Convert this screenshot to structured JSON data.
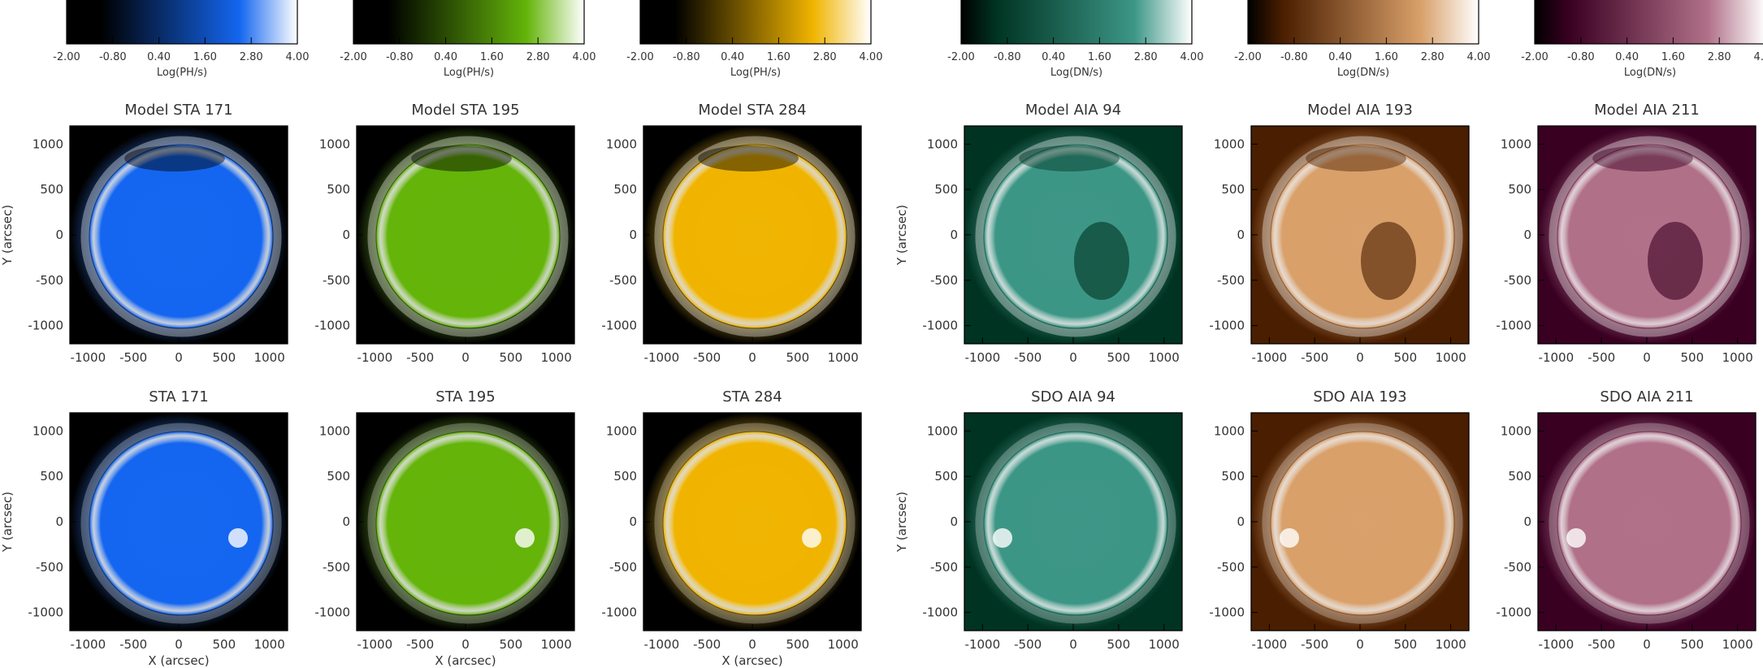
{
  "colorbars": [
    {
      "ticks": [
        "-2.00",
        "-0.80",
        "0.40",
        "1.60",
        "2.80",
        "4.00"
      ],
      "label": "Log(PH/s)",
      "cmap": "blue"
    },
    {
      "ticks": [
        "-2.00",
        "-0.80",
        "0.40",
        "1.60",
        "2.80",
        "4.00"
      ],
      "label": "Log(PH/s)",
      "cmap": "green"
    },
    {
      "ticks": [
        "-2.00",
        "-0.80",
        "0.40",
        "1.60",
        "2.80",
        "4.00"
      ],
      "label": "Log(PH/s)",
      "cmap": "gold"
    },
    {
      "ticks": [
        "-2.00",
        "-0.80",
        "0.40",
        "1.60",
        "2.80",
        "4.00"
      ],
      "label": "Log(DN/s)",
      "cmap": "teal"
    },
    {
      "ticks": [
        "-2.00",
        "-0.80",
        "0.40",
        "1.60",
        "2.80",
        "4.00"
      ],
      "label": "Log(DN/s)",
      "cmap": "brown"
    },
    {
      "ticks": [
        "-2.00",
        "-0.80",
        "0.40",
        "1.60",
        "2.80",
        "4.00"
      ],
      "label": "Log(DN/s)",
      "cmap": "mauve"
    }
  ],
  "axes": {
    "x_ticks": [
      "-1000",
      "-500",
      "0",
      "500",
      "1000"
    ],
    "y_ticks": [
      "1000",
      "500",
      "0",
      "-500",
      "-1000"
    ],
    "x_label": "X (arcsec)",
    "y_label": "Y (arcsec)"
  },
  "panels": [
    {
      "title": "Model STA 171",
      "cmap": "blue"
    },
    {
      "title": "Model STA 195",
      "cmap": "green"
    },
    {
      "title": "Model STA 284",
      "cmap": "gold"
    },
    {
      "title": "Model AIA 94",
      "cmap": "teal"
    },
    {
      "title": "Model AIA 193",
      "cmap": "brown"
    },
    {
      "title": "Model AIA 211",
      "cmap": "mauve"
    },
    {
      "title": "STA 171",
      "cmap": "blue"
    },
    {
      "title": "STA 195",
      "cmap": "green"
    },
    {
      "title": "STA 284",
      "cmap": "gold"
    },
    {
      "title": "SDO AIA 94",
      "cmap": "teal"
    },
    {
      "title": "SDO AIA 193",
      "cmap": "brown"
    },
    {
      "title": "SDO AIA 211",
      "cmap": "mauve"
    }
  ],
  "colormaps": {
    "blue": {
      "dark": "#000000",
      "mid": "#1466f0",
      "light": "#ffffff"
    },
    "green": {
      "dark": "#000000",
      "mid": "#64b40a",
      "light": "#ffffff"
    },
    "gold": {
      "dark": "#000000",
      "mid": "#f0b400",
      "light": "#ffffff"
    },
    "teal": {
      "dark": "#003322",
      "mid": "#3c9686",
      "light": "#ffffff"
    },
    "brown": {
      "dark": "#4a1e00",
      "mid": "#d9a06a",
      "light": "#ffffff"
    },
    "mauve": {
      "dark": "#3a0022",
      "mid": "#b07088",
      "light": "#ffffff"
    }
  }
}
